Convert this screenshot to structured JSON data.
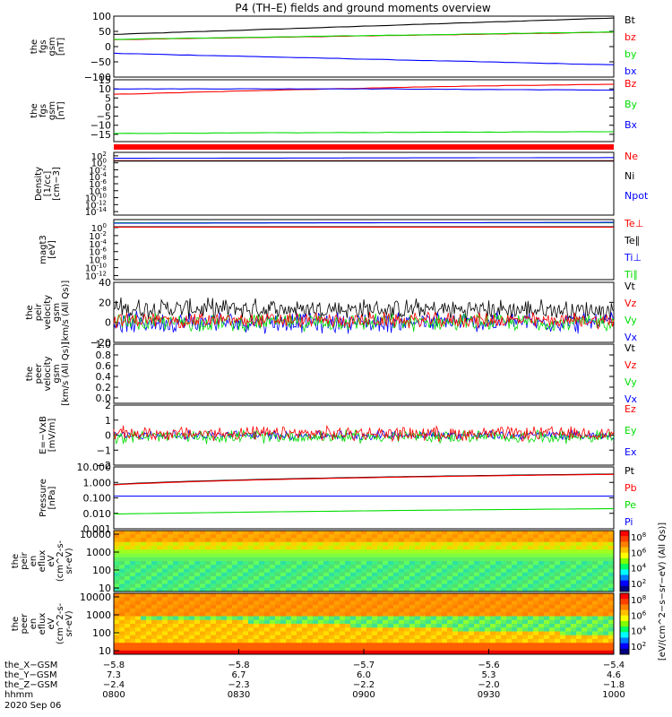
{
  "title": "P4 (TH–E) fields and ground moments overview",
  "palette": {
    "black": "#000000",
    "red": "#ff0000",
    "green": "#00dd00",
    "blue": "#0000ff",
    "darkred": "#aa0000"
  },
  "chart_data": [
    {
      "id": "fgs_gsm",
      "type": "line",
      "ylabel": [
        "the",
        "fgs",
        "gsm",
        "[nT]"
      ],
      "ylim": [
        -100,
        100
      ],
      "yticks": [
        -100,
        -50,
        0,
        50,
        100
      ],
      "ytick_labels": [
        "−100",
        "−50",
        "0",
        "50",
        "100"
      ],
      "legend": [
        {
          "name": "Bt",
          "color": "#000000"
        },
        {
          "name": "bz",
          "color": "#ff0000"
        },
        {
          "name": "by",
          "color": "#00dd00"
        },
        {
          "name": "bx",
          "color": "#0000ff"
        }
      ],
      "series": [
        {
          "name": "Bt",
          "color": "#000000",
          "x": [
            0,
            1
          ],
          "y": [
            40,
            94
          ]
        },
        {
          "name": "bz",
          "color": "#ff0000",
          "x": [
            0,
            1
          ],
          "y": [
            23,
            47
          ]
        },
        {
          "name": "by",
          "color": "#00dd00",
          "x": [
            0,
            1
          ],
          "y": [
            24,
            48
          ]
        },
        {
          "name": "bx",
          "color": "#0000ff",
          "x": [
            0,
            1
          ],
          "y": [
            -22,
            -60
          ]
        }
      ]
    },
    {
      "id": "fgs_gse",
      "type": "line",
      "ylabel": [
        "the",
        "fgs",
        "gsm",
        "[nT]"
      ],
      "ylim": [
        -19,
        15
      ],
      "yticks": [
        -15,
        -10,
        -5,
        0,
        5,
        10,
        15
      ],
      "ytick_labels": [
        "−15",
        "−10",
        "−5",
        "0",
        "5",
        "10",
        "15"
      ],
      "legend": [
        {
          "name": "Bz",
          "color": "#ff0000"
        },
        {
          "name": "By",
          "color": "#00dd00"
        },
        {
          "name": "Bx",
          "color": "#0000ff"
        }
      ],
      "series": [
        {
          "name": "Bz",
          "color": "#ff0000",
          "x": [
            0,
            0.35,
            0.7,
            1
          ],
          "y": [
            7,
            9.5,
            11.5,
            12.5
          ]
        },
        {
          "name": "By",
          "color": "#00dd00",
          "x": [
            0,
            1
          ],
          "y": [
            -14.5,
            -13.5
          ]
        },
        {
          "name": "Bx",
          "color": "#0000ff",
          "x": [
            0,
            0.5,
            1
          ],
          "y": [
            10,
            10,
            9.3
          ]
        }
      ]
    },
    {
      "id": "density",
      "type": "line",
      "ylabel": [
        "Density",
        "[1/cc]",
        "[cm−3]"
      ],
      "log": true,
      "ylim_exp": [
        -15,
        3
      ],
      "ytick_exps": [
        -14,
        -12,
        -10,
        -8,
        -6,
        -4,
        -2,
        0,
        2
      ],
      "legend": [
        {
          "name": "Ne",
          "color": "#ff0000"
        },
        {
          "name": "Ni",
          "color": "#000000"
        },
        {
          "name": "Npot",
          "color": "#0000ff"
        }
      ],
      "series": [
        {
          "name": "Npot",
          "color": "#0000ff",
          "x": [
            0,
            1
          ],
          "y_exp": [
            1.3,
            1.5
          ]
        },
        {
          "name": "Ne",
          "color": "#ff0000",
          "x": [
            0,
            1
          ],
          "y_exp": [
            0.6,
            0.6
          ]
        },
        {
          "name": "Ni",
          "color": "#000000",
          "x": [
            0,
            1
          ],
          "y_exp": [
            0.5,
            0.5
          ]
        }
      ]
    },
    {
      "id": "temperature",
      "type": "line",
      "ylabel": [
        "magt3",
        "[eV]"
      ],
      "log": true,
      "ylim_exp": [
        -13,
        2
      ],
      "ytick_exps": [
        -12,
        -10,
        -8,
        -6,
        -4,
        -2,
        0
      ],
      "legend": [
        {
          "name": "Te⊥",
          "color": "#ff0000"
        },
        {
          "name": "Te∥",
          "color": "#000000"
        },
        {
          "name": "Ti⊥",
          "color": "#0000ff"
        },
        {
          "name": "Ti∥",
          "color": "#00dd00"
        }
      ],
      "series": [
        {
          "name": "Ti∥",
          "color": "#00dd00",
          "x": [
            0,
            1
          ],
          "y_exp": [
            1.2,
            1.2
          ]
        },
        {
          "name": "Ti⊥",
          "color": "#0000ff",
          "x": [
            0,
            1
          ],
          "y_exp": [
            1.1,
            1.3
          ]
        },
        {
          "name": "Te∥",
          "color": "#000000",
          "x": [
            0,
            1
          ],
          "y_exp": [
            0.2,
            0.2
          ]
        },
        {
          "name": "Te⊥",
          "color": "#ff0000",
          "x": [
            0,
            1
          ],
          "y_exp": [
            0.1,
            0.1
          ]
        }
      ]
    },
    {
      "id": "peir_velocity",
      "type": "line",
      "ylabel": [
        "the",
        "peir",
        "velocity",
        "gsm",
        "[km/s (All Qs)]"
      ],
      "ylim": [
        -20,
        40
      ],
      "yticks": [
        -20,
        0,
        20,
        40
      ],
      "ytick_labels": [
        "−20",
        "0",
        "20",
        "40"
      ],
      "legend": [
        {
          "name": "Vt",
          "color": "#000000"
        },
        {
          "name": "Vz",
          "color": "#ff0000"
        },
        {
          "name": "Vy",
          "color": "#00dd00"
        },
        {
          "name": "Vx",
          "color": "#0000ff"
        }
      ],
      "series": [
        {
          "name": "Vt",
          "color": "#000000",
          "x": [
            0,
            1
          ],
          "y": [
            14,
            12
          ],
          "noise": 12
        },
        {
          "name": "Vx",
          "color": "#0000ff",
          "x": [
            0,
            1
          ],
          "y": [
            0,
            0
          ],
          "noise": 12
        },
        {
          "name": "Vy",
          "color": "#00dd00",
          "x": [
            0,
            1
          ],
          "y": [
            0,
            0
          ],
          "noise": 10
        },
        {
          "name": "Vz",
          "color": "#ff0000",
          "x": [
            0,
            1
          ],
          "y": [
            2,
            2
          ],
          "noise": 9
        }
      ]
    },
    {
      "id": "peer_velocity",
      "type": "line",
      "ylabel": [
        "the",
        "peer",
        "velocity",
        "gsm",
        "[km/s (All Qs)]"
      ],
      "ylim": [
        -0.1,
        1.0
      ],
      "yticks": [
        0.0,
        0.2,
        0.4,
        0.6,
        0.8,
        1.0
      ],
      "ytick_labels": [
        "0.0",
        "0.2",
        "0.4",
        "0.6",
        "0.8",
        "1.0"
      ],
      "legend": [
        {
          "name": "Vt",
          "color": "#000000"
        },
        {
          "name": "Vz",
          "color": "#ff0000"
        },
        {
          "name": "Vy",
          "color": "#00dd00"
        },
        {
          "name": "Vx",
          "color": "#0000ff"
        }
      ],
      "series": []
    },
    {
      "id": "efield",
      "type": "line",
      "ylabel": [
        "E=−VxB",
        "[mV/m]"
      ],
      "ylim": [
        -2,
        2
      ],
      "yticks": [
        -2,
        -1,
        0,
        1,
        2
      ],
      "ytick_labels": [
        "−2",
        "−1",
        "0",
        "1",
        "2"
      ],
      "legend": [
        {
          "name": "Ez",
          "color": "#ff0000"
        },
        {
          "name": "Ey",
          "color": "#00dd00"
        },
        {
          "name": "Ex",
          "color": "#0000ff"
        }
      ],
      "series": [
        {
          "name": "Ex",
          "color": "#0000ff",
          "x": [
            0,
            1
          ],
          "y": [
            0,
            0
          ],
          "noise": 0.35
        },
        {
          "name": "Ey",
          "color": "#00dd00",
          "x": [
            0,
            1
          ],
          "y": [
            -0.1,
            -0.1
          ],
          "noise": 0.5
        },
        {
          "name": "Ez",
          "color": "#ff0000",
          "x": [
            0,
            1
          ],
          "y": [
            0.1,
            0.1
          ],
          "noise": 0.55
        }
      ]
    },
    {
      "id": "pressure",
      "type": "line",
      "ylabel": [
        "Pressure",
        "[nPa]"
      ],
      "log": true,
      "ylim_exp": [
        -3,
        1
      ],
      "yticks": [
        0.001,
        0.01,
        0.1,
        1.0,
        10.0
      ],
      "ytick_labels": [
        "0.001",
        "0.010",
        "0.100",
        "1.000",
        "10.000"
      ],
      "legend": [
        {
          "name": "Pt",
          "color": "#000000"
        },
        {
          "name": "Pb",
          "color": "#ff0000"
        },
        {
          "name": "Pe",
          "color": "#00dd00"
        },
        {
          "name": "Pi",
          "color": "#0000ff"
        }
      ],
      "series": [
        {
          "name": "Pt",
          "color": "#000000",
          "x": [
            0,
            1
          ],
          "y": [
            0.75,
            3.5
          ]
        },
        {
          "name": "Pb",
          "color": "#ff0000",
          "x": [
            0,
            1
          ],
          "y": [
            0.7,
            3.3
          ]
        },
        {
          "name": "Pi",
          "color": "#0000ff",
          "x": [
            0,
            1
          ],
          "y": [
            0.13,
            0.13
          ]
        },
        {
          "name": "Pe",
          "color": "#00dd00",
          "x": [
            0,
            1
          ],
          "y": [
            0.009,
            0.02
          ]
        }
      ]
    },
    {
      "id": "peir_eflux",
      "type": "heatmap",
      "ylabel": [
        "the",
        "peir",
        "en",
        "eflux",
        "eV",
        "(cm^2-s-",
        "sr-eV)"
      ],
      "ylim": [
        10,
        10000
      ],
      "ytick_labels": [
        "10",
        "100",
        "1000",
        "10000"
      ],
      "colorbar": {
        "label": "[eV/(cm^2−s−sr−eV)]",
        "tick_exps": [
          2,
          4,
          6,
          8
        ]
      }
    },
    {
      "id": "peer_eflux",
      "type": "heatmap",
      "ylabel": [
        "the",
        "peer",
        "en",
        "eflux",
        "eV",
        "(cm^2-s-",
        "sr-eV)"
      ],
      "ylim": [
        10,
        10000
      ],
      "ytick_labels": [
        "10",
        "100",
        "1000",
        "10000"
      ],
      "colorbar": {
        "label": "[eV/(cm^2−s−sr−eV)]",
        "tick_exps": [
          2,
          4,
          6,
          8
        ]
      }
    }
  ],
  "axis_rows": [
    {
      "label": "the_X−GSM",
      "values": [
        "−5.8",
        "−5.8",
        "−5.7",
        "−5.6",
        "−5.4"
      ]
    },
    {
      "label": "the_Y−GSM",
      "values": [
        "7.3",
        "6.7",
        "6.0",
        "5.3",
        "4.6"
      ]
    },
    {
      "label": "the_Z−GSM",
      "values": [
        "−2.4",
        "−2.3",
        "−2.2",
        "−2.0",
        "−1.8"
      ]
    },
    {
      "label": "hhmm",
      "values": [
        "0800",
        "0830",
        "0900",
        "0930",
        "1000"
      ]
    }
  ],
  "date_label": "2020 Sep 06",
  "strip_colorbar_label": "[eV/(cm^2−s−sr−eV) (All Qs)]"
}
